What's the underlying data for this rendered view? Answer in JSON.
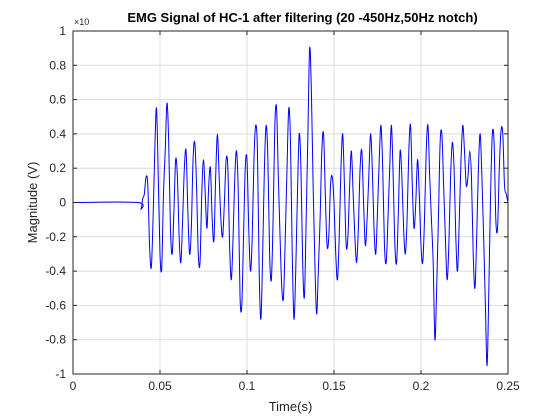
{
  "chart_data": {
    "type": "line",
    "title": "EMG Signal of HC-1 after filtering (20 -450Hz,50Hz notch)",
    "xlabel": "Time(s)",
    "ylabel": "Magnitude (V)",
    "y_exponent_label": "×10",
    "xlim": [
      0,
      0.25
    ],
    "ylim": [
      -1,
      1
    ],
    "x_ticks": [
      "0",
      "0.05",
      "0.1",
      "0.15",
      "0.2",
      "0.25"
    ],
    "y_ticks": [
      "-1",
      "-0.8",
      "-0.6",
      "-0.4",
      "-0.2",
      "0",
      "0.2",
      "0.4",
      "0.6",
      "0.8",
      "1"
    ],
    "grid": true,
    "line_color": "#0000ff",
    "series": [
      {
        "x": [
          0,
          0.037,
          0.039,
          0.04,
          0.041,
          0.042,
          0.043,
          0.044,
          0.045,
          0.046,
          0.047,
          0.048,
          0.049,
          0.05,
          0.051,
          0.052,
          0.053,
          0.054,
          0.055,
          0.056,
          0.057,
          0.058,
          0.059,
          0.06,
          0.061,
          0.062,
          0.063,
          0.064,
          0.065,
          0.066,
          0.067,
          0.068,
          0.069,
          0.07,
          0.071,
          0.072,
          0.073,
          0.074,
          0.075,
          0.076,
          0.077,
          0.078,
          0.079,
          0.08,
          0.081,
          0.082,
          0.083,
          0.084,
          0.085,
          0.086,
          0.087,
          0.088,
          0.089,
          0.09,
          0.091,
          0.092,
          0.093,
          0.094,
          0.095,
          0.096,
          0.097,
          0.098,
          0.099,
          0.1,
          0.101,
          0.102,
          0.103,
          0.104,
          0.105,
          0.106,
          0.107,
          0.108,
          0.109,
          0.11,
          0.111,
          0.112,
          0.113,
          0.114,
          0.115,
          0.116,
          0.117,
          0.118,
          0.119,
          0.12,
          0.121,
          0.122,
          0.123,
          0.124,
          0.125,
          0.126,
          0.127,
          0.128,
          0.129,
          0.13,
          0.131,
          0.132,
          0.133,
          0.134,
          0.135,
          0.136,
          0.137,
          0.138,
          0.139,
          0.14,
          0.141,
          0.142,
          0.143,
          0.144,
          0.145,
          0.146,
          0.147,
          0.148,
          0.149,
          0.15,
          0.151,
          0.152,
          0.153,
          0.154,
          0.155,
          0.156,
          0.157,
          0.158,
          0.159,
          0.16,
          0.161,
          0.162,
          0.163,
          0.164,
          0.165,
          0.166,
          0.167,
          0.168,
          0.169,
          0.17,
          0.171,
          0.172,
          0.173,
          0.174,
          0.175,
          0.176,
          0.177,
          0.178,
          0.179,
          0.18,
          0.181,
          0.182,
          0.183,
          0.184,
          0.185,
          0.186,
          0.187,
          0.188,
          0.189,
          0.19,
          0.191,
          0.192,
          0.193,
          0.194,
          0.195,
          0.196,
          0.197,
          0.198,
          0.199,
          0.2,
          0.201,
          0.202,
          0.203,
          0.204,
          0.205,
          0.206,
          0.207,
          0.208,
          0.209,
          0.21,
          0.211,
          0.212,
          0.213,
          0.214,
          0.215,
          0.216,
          0.217,
          0.218,
          0.219,
          0.22,
          0.221,
          0.222,
          0.223,
          0.224,
          0.225,
          0.226,
          0.227,
          0.228,
          0.229,
          0.23,
          0.231,
          0.232,
          0.233,
          0.234,
          0.235,
          0.236,
          0.237,
          0.238,
          0.239,
          0.24,
          0.241,
          0.242,
          0.243,
          0.244,
          0.245,
          0.246,
          0.247,
          0.248,
          0.249,
          0.25
        ],
        "y": [
          0,
          0,
          -0.04,
          0.02,
          0.05,
          0.15,
          0.1,
          -0.25,
          -0.38,
          -0.1,
          0.3,
          0.55,
          0.15,
          -0.3,
          -0.38,
          0.05,
          0.3,
          0.58,
          0.35,
          -0.15,
          -0.3,
          -0.05,
          0.25,
          0.15,
          -0.2,
          -0.35,
          -0.1,
          0.2,
          0.3,
          -0.05,
          -0.3,
          -0.15,
          0.25,
          0.35,
          0.1,
          -0.3,
          -0.35,
          0.05,
          0.25,
          0.05,
          -0.15,
          0.1,
          0.2,
          -0.1,
          -0.22,
          0.15,
          0.4,
          0.15,
          -0.1,
          -0.2,
          0.0,
          0.25,
          0.2,
          -0.25,
          -0.45,
          -0.2,
          0.15,
          0.3,
          0.05,
          -0.55,
          -0.6,
          -0.2,
          0.2,
          0.25,
          -0.15,
          -0.4,
          -0.2,
          0.25,
          0.45,
          0.3,
          -0.4,
          -0.68,
          -0.3,
          0.2,
          0.45,
          0.25,
          -0.3,
          -0.45,
          -0.1,
          0.45,
          0.55,
          0.15,
          -0.2,
          -0.5,
          -0.55,
          -0.2,
          0.2,
          0.55,
          0.35,
          -0.3,
          -0.68,
          -0.4,
          0.05,
          0.4,
          0.2,
          -0.35,
          -0.55,
          -0.1,
          0.4,
          0.9,
          0.65,
          0.1,
          -0.35,
          -0.65,
          -0.4,
          -0.1,
          0.3,
          0.4,
          0.05,
          -0.25,
          -0.2,
          0.1,
          0.15,
          0.0,
          -0.3,
          -0.45,
          -0.2,
          0.2,
          0.4,
          0.1,
          -0.25,
          -0.2,
          0.1,
          0.3,
          0.05,
          -0.2,
          -0.35,
          -0.15,
          0.2,
          0.3,
          0.0,
          -0.25,
          -0.1,
          0.15,
          0.4,
          0.2,
          -0.15,
          -0.3,
          -0.05,
          0.25,
          0.45,
          0.2,
          -0.25,
          -0.35,
          -0.1,
          0.2,
          0.45,
          0.15,
          -0.25,
          -0.35,
          -0.05,
          0.3,
          0.15,
          -0.15,
          -0.3,
          -0.1,
          0.3,
          0.45,
          0.1,
          -0.15,
          0.0,
          0.25,
          0.05,
          -0.25,
          -0.35,
          -0.1,
          0.3,
          0.45,
          0.15,
          -0.1,
          -0.35,
          -0.8,
          -0.5,
          -0.1,
          0.35,
          0.4,
          0.1,
          -0.2,
          -0.45,
          -0.25,
          0.15,
          0.35,
          0.2,
          -0.2,
          -0.4,
          -0.1,
          0.25,
          0.45,
          0.3,
          0.1,
          0.15,
          0.3,
          0.15,
          -0.3,
          -0.5,
          -0.2,
          0.2,
          0.4,
          0.15,
          -0.2,
          -0.6,
          -0.95,
          -0.5,
          0.05,
          0.4,
          0.35,
          -0.1,
          -0.15,
          0.2,
          0.42,
          0.4,
          0.1,
          0.05,
          0.0
        ]
      }
    ]
  }
}
